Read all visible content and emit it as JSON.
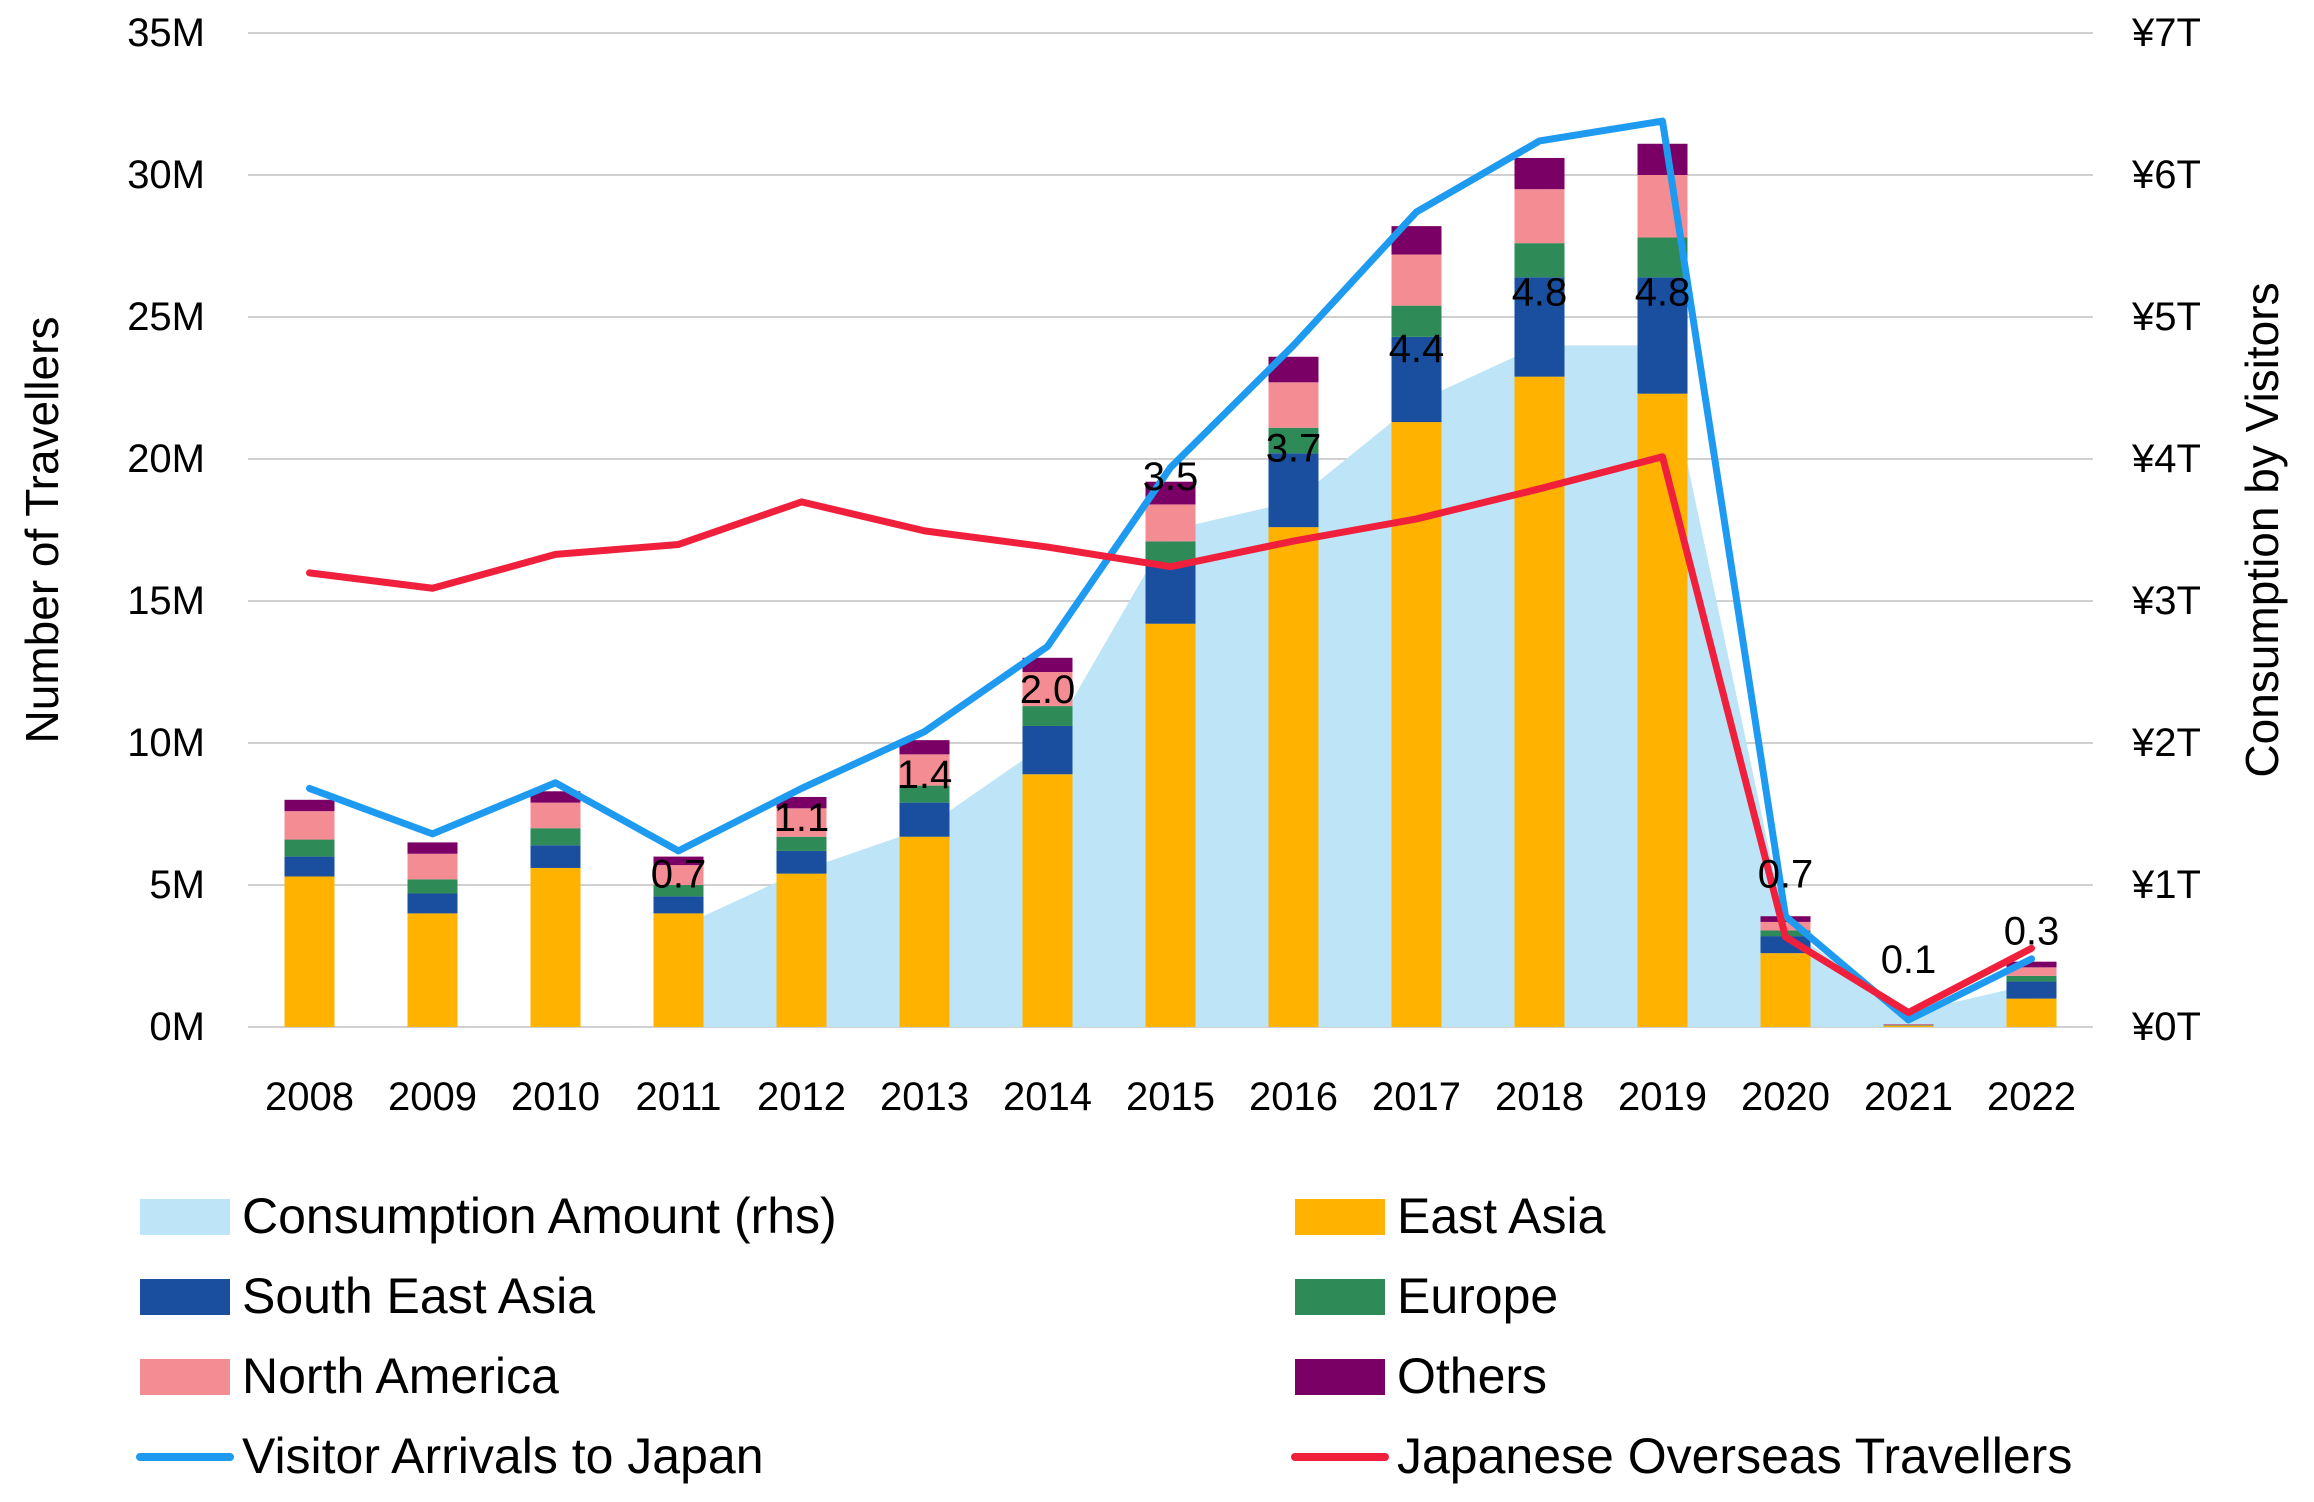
{
  "chart_data": {
    "type": "bar",
    "title": "",
    "stacked": true,
    "categories": [
      "2008",
      "2009",
      "2010",
      "2011",
      "2012",
      "2013",
      "2014",
      "2015",
      "2016",
      "2017",
      "2018",
      "2019",
      "2020",
      "2021",
      "2022"
    ],
    "ylabel": "Number of Travellers",
    "y2label": "Consumption by Visitors",
    "ylim": [
      0,
      35
    ],
    "y2lim": [
      0,
      7
    ],
    "y_ticks": [
      "0M",
      "5M",
      "10M",
      "15M",
      "20M",
      "25M",
      "30M",
      "35M"
    ],
    "y2_ticks": [
      "¥0T",
      "¥1T",
      "¥2T",
      "¥3T",
      "¥4T",
      "¥5T",
      "¥6T",
      "¥7T"
    ],
    "grid": true,
    "legend_position": "bottom",
    "series": [
      {
        "name": "East Asia",
        "kind": "bar",
        "color": "#FFB300",
        "values": [
          5.3,
          4.0,
          5.6,
          4.0,
          5.4,
          6.7,
          8.9,
          14.2,
          17.6,
          21.3,
          22.9,
          22.3,
          2.6,
          0.05,
          1.0
        ]
      },
      {
        "name": "South East Asia",
        "kind": "bar",
        "color": "#1A4F9F",
        "values": [
          0.7,
          0.7,
          0.8,
          0.6,
          0.8,
          1.2,
          1.7,
          2.1,
          2.6,
          3.0,
          3.5,
          4.1,
          0.6,
          0.01,
          0.6
        ]
      },
      {
        "name": "Europe",
        "kind": "bar",
        "color": "#2E8B57",
        "values": [
          0.6,
          0.5,
          0.6,
          0.4,
          0.5,
          0.6,
          0.7,
          0.8,
          0.9,
          1.1,
          1.2,
          1.4,
          0.2,
          0.01,
          0.2
        ]
      },
      {
        "name": "North America",
        "kind": "bar",
        "color": "#F48C94",
        "values": [
          1.0,
          0.9,
          0.9,
          0.7,
          1.0,
          1.1,
          1.2,
          1.3,
          1.6,
          1.8,
          1.9,
          2.2,
          0.3,
          0.02,
          0.3
        ]
      },
      {
        "name": "Others",
        "kind": "bar",
        "color": "#7B0066",
        "values": [
          0.4,
          0.4,
          0.4,
          0.3,
          0.4,
          0.5,
          0.5,
          0.8,
          0.9,
          1.0,
          1.1,
          1.1,
          0.2,
          0.01,
          0.2
        ]
      },
      {
        "name": "Consumption Amount (rhs)",
        "kind": "area",
        "axis": "right",
        "color": "#BDE4F7",
        "values": [
          null,
          null,
          null,
          0.7,
          1.1,
          1.4,
          2.0,
          3.5,
          3.7,
          4.4,
          4.8,
          4.8,
          0.7,
          0.1,
          0.3
        ],
        "labels": [
          "",
          "",
          "",
          "0.7",
          "1.1",
          "1.4",
          "2.0",
          "3.5",
          "3.7",
          "4.4",
          "4.8",
          "4.8",
          "0.7",
          "0.1",
          "0.3"
        ]
      },
      {
        "name": "Visitor Arrivals to Japan",
        "kind": "line",
        "color": "#1E9BF0",
        "values": [
          8.4,
          6.8,
          8.6,
          6.2,
          8.4,
          10.4,
          13.4,
          19.7,
          24.0,
          28.7,
          31.2,
          31.9,
          3.9,
          0.25,
          2.4
        ]
      },
      {
        "name": "Japanese Overseas Travellers",
        "kind": "line",
        "color": "#F0203C",
        "values": [
          15.99,
          15.45,
          16.64,
          16.99,
          18.49,
          17.47,
          16.9,
          16.21,
          17.11,
          17.89,
          18.95,
          20.08,
          3.17,
          0.51,
          2.77
        ]
      }
    ],
    "legend": [
      {
        "name": "Consumption Amount (rhs)",
        "symbol": "area",
        "color": "#BDE4F7"
      },
      {
        "name": "East Asia",
        "symbol": "box",
        "color": "#FFB300"
      },
      {
        "name": "South East Asia",
        "symbol": "box",
        "color": "#1A4F9F"
      },
      {
        "name": "Europe",
        "symbol": "box",
        "color": "#2E8B57"
      },
      {
        "name": "North America",
        "symbol": "box",
        "color": "#F48C94"
      },
      {
        "name": "Others",
        "symbol": "box",
        "color": "#7B0066"
      },
      {
        "name": "Visitor Arrivals to Japan",
        "symbol": "line",
        "color": "#1E9BF0"
      },
      {
        "name": "Japanese Overseas Travellers",
        "symbol": "line",
        "color": "#F0203C"
      }
    ]
  }
}
